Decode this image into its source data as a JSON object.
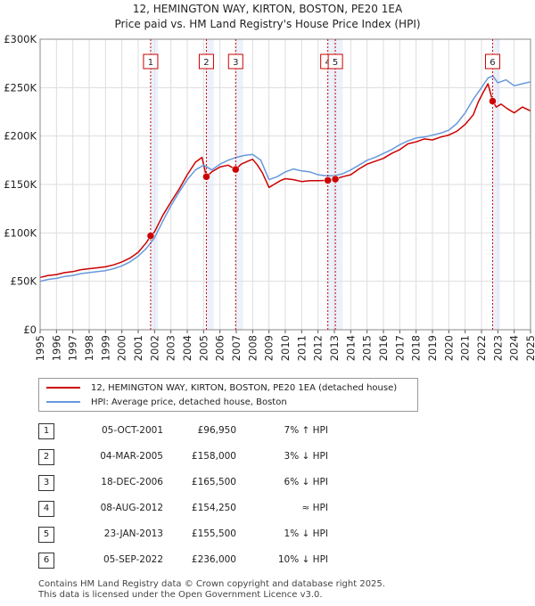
{
  "chart_data": {
    "type": "line",
    "title": "12, HEMINGTON WAY, KIRTON, BOSTON, PE20 1EA",
    "subtitle": "Price paid vs. HM Land Registry's House Price Index (HPI)",
    "xlabel": "",
    "ylabel": "",
    "xlim": [
      1995,
      2025
    ],
    "ylim": [
      0,
      300000
    ],
    "y_ticks": [
      {
        "value": 0,
        "label": "£0"
      },
      {
        "value": 50000,
        "label": "£50K"
      },
      {
        "value": 100000,
        "label": "£100K"
      },
      {
        "value": 150000,
        "label": "£150K"
      },
      {
        "value": 200000,
        "label": "£200K"
      },
      {
        "value": 250000,
        "label": "£250K"
      },
      {
        "value": 300000,
        "label": "£300K"
      }
    ],
    "x_ticks": [
      "1995",
      "1996",
      "1997",
      "1998",
      "1999",
      "2000",
      "2001",
      "2002",
      "2003",
      "2004",
      "2005",
      "2006",
      "2007",
      "2008",
      "2009",
      "2010",
      "2011",
      "2012",
      "2013",
      "2014",
      "2015",
      "2016",
      "2017",
      "2018",
      "2019",
      "2020",
      "2021",
      "2022",
      "2023",
      "2024",
      "2025"
    ],
    "grid": true,
    "legend_position": "bottom",
    "series": [
      {
        "name": "12, HEMINGTON WAY, KIRTON, BOSTON, PE20 1EA (detached house)",
        "color": "#cc0000",
        "x": [
          1995.0,
          1995.5,
          1996.0,
          1996.5,
          1997.0,
          1997.5,
          1998.0,
          1998.5,
          1999.0,
          1999.5,
          2000.0,
          2000.5,
          2001.0,
          2001.5,
          2001.76,
          2002.0,
          2002.5,
          2003.0,
          2003.5,
          2004.0,
          2004.5,
          2004.9,
          2005.17,
          2005.5,
          2006.0,
          2006.5,
          2006.96,
          2007.3,
          2007.7,
          2008.0,
          2008.3,
          2008.6,
          2009.0,
          2009.3,
          2009.7,
          2010.0,
          2010.5,
          2011.0,
          2011.5,
          2012.0,
          2012.6,
          2013.06,
          2013.5,
          2014.0,
          2014.5,
          2015.0,
          2015.5,
          2016.0,
          2016.5,
          2017.0,
          2017.5,
          2018.0,
          2018.5,
          2019.0,
          2019.5,
          2020.0,
          2020.5,
          2021.0,
          2021.5,
          2021.8,
          2022.1,
          2022.4,
          2022.68,
          2022.9,
          2023.2,
          2023.6,
          2024.0,
          2024.5,
          2025.0
        ],
        "values": [
          54000,
          56000,
          57000,
          59000,
          60000,
          62000,
          63000,
          64000,
          65000,
          67000,
          70000,
          74000,
          80000,
          90000,
          96950,
          101000,
          118000,
          132000,
          145000,
          160000,
          173000,
          178000,
          158000,
          163000,
          168000,
          170000,
          165500,
          171000,
          174000,
          176000,
          170000,
          162000,
          147000,
          150000,
          154000,
          156000,
          155000,
          153000,
          154000,
          154000,
          154250,
          155500,
          158000,
          160000,
          166000,
          171000,
          174000,
          177000,
          182000,
          186000,
          192000,
          194000,
          197000,
          196000,
          199000,
          201000,
          205000,
          212000,
          222000,
          235000,
          245000,
          254000,
          236000,
          230000,
          233000,
          228000,
          224000,
          230000,
          226000
        ]
      },
      {
        "name": "HPI: Average price, detached house, Boston",
        "color": "#6699dd",
        "x": [
          1995.0,
          1995.5,
          1996.0,
          1996.5,
          1997.0,
          1997.5,
          1998.0,
          1998.5,
          1999.0,
          1999.5,
          2000.0,
          2000.5,
          2001.0,
          2001.5,
          2002.0,
          2002.5,
          2003.0,
          2003.5,
          2004.0,
          2004.5,
          2005.0,
          2005.5,
          2006.0,
          2006.5,
          2007.0,
          2007.5,
          2008.0,
          2008.5,
          2009.0,
          2009.5,
          2010.0,
          2010.5,
          2011.0,
          2011.5,
          2012.0,
          2012.5,
          2013.0,
          2013.5,
          2014.0,
          2014.5,
          2015.0,
          2015.5,
          2016.0,
          2016.5,
          2017.0,
          2017.5,
          2018.0,
          2018.5,
          2019.0,
          2019.5,
          2020.0,
          2020.5,
          2021.0,
          2021.5,
          2022.0,
          2022.4,
          2022.7,
          2023.0,
          2023.5,
          2024.0,
          2024.5,
          2025.0
        ],
        "values": [
          50000,
          52000,
          53000,
          55000,
          56000,
          58000,
          59000,
          60000,
          61000,
          63000,
          66000,
          70000,
          76000,
          84000,
          95000,
          112000,
          128000,
          142000,
          155000,
          165000,
          170000,
          165000,
          171000,
          175000,
          178000,
          180000,
          181000,
          175000,
          155000,
          158000,
          163000,
          166000,
          164000,
          163000,
          160000,
          159000,
          159000,
          161000,
          165000,
          170000,
          175000,
          178000,
          182000,
          186000,
          191000,
          195000,
          198000,
          199000,
          201000,
          203000,
          206000,
          213000,
          224000,
          238000,
          250000,
          260000,
          262000,
          255000,
          258000,
          252000,
          254000,
          256000
        ]
      }
    ],
    "markers": [
      {
        "label": "1",
        "x": 2001.76,
        "value": 96950
      },
      {
        "label": "2",
        "x": 2005.17,
        "value": 158000
      },
      {
        "label": "3",
        "x": 2006.96,
        "value": 165500
      },
      {
        "label": "4",
        "x": 2012.6,
        "value": 154250
      },
      {
        "label": "5",
        "x": 2013.06,
        "value": 155500
      },
      {
        "label": "6",
        "x": 2022.68,
        "value": 236000
      }
    ]
  },
  "transactions": [
    {
      "num": "1",
      "date": "05-OCT-2001",
      "price": "£96,950",
      "hpi": "7% ↑ HPI"
    },
    {
      "num": "2",
      "date": "04-MAR-2005",
      "price": "£158,000",
      "hpi": "3% ↓ HPI"
    },
    {
      "num": "3",
      "date": "18-DEC-2006",
      "price": "£165,500",
      "hpi": "6% ↓ HPI"
    },
    {
      "num": "4",
      "date": "08-AUG-2012",
      "price": "£154,250",
      "hpi": "≈ HPI"
    },
    {
      "num": "5",
      "date": "23-JAN-2013",
      "price": "£155,500",
      "hpi": "1% ↓ HPI"
    },
    {
      "num": "6",
      "date": "05-SEP-2022",
      "price": "£236,000",
      "hpi": "10% ↓ HPI"
    }
  ],
  "footer": {
    "line1": "Contains HM Land Registry data © Crown copyright and database right 2025.",
    "line2": "This data is licensed under the Open Government Licence v3.0."
  }
}
